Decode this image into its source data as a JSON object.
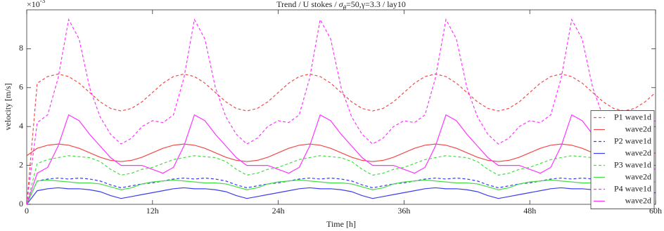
{
  "chart_data": {
    "type": "line",
    "title_parts": [
      "Trend / U stokes / ",
      "σ",
      "θ",
      "=50,γ=3.3 / lay10"
    ],
    "y_multiplier": {
      "base": "×10",
      "exponent": "-3"
    },
    "xlabel": "Time [h]",
    "ylabel": "velocity [m/s]",
    "xlim": [
      0,
      60
    ],
    "xticks": [
      0,
      {
        "value": 12,
        "label": "12h"
      },
      {
        "value": 24,
        "label": "24h"
      },
      {
        "value": 36,
        "label": "36h"
      },
      {
        "value": 48,
        "label": "48h"
      },
      {
        "value": 60,
        "label": "60h"
      }
    ],
    "ylim": [
      0,
      10
    ],
    "yticks": [
      0,
      2,
      4,
      6,
      8
    ],
    "grid": false,
    "legend": "east",
    "x": [
      0,
      1,
      2,
      3,
      4,
      5,
      6,
      7,
      8,
      9,
      10,
      11,
      12,
      13,
      14,
      15,
      16,
      17,
      18,
      19,
      20,
      21,
      22,
      23,
      24,
      25,
      26,
      27,
      28,
      29,
      30,
      31,
      32,
      33,
      34,
      35,
      36,
      37,
      38,
      39,
      40,
      41,
      42,
      43,
      44,
      45,
      46,
      47,
      48,
      49,
      50,
      51,
      52,
      53,
      54,
      55,
      56,
      57,
      58,
      59,
      60
    ],
    "series": [
      {
        "name": "P1 wave1d",
        "color": "#f04a4a",
        "dash": true,
        "values": [
          0,
          6.23,
          6.57,
          6.7,
          6.57,
          6.23,
          5.75,
          5.27,
          4.93,
          4.8,
          4.93,
          5.27,
          5.75,
          6.23,
          6.57,
          6.7,
          6.57,
          6.23,
          5.75,
          5.27,
          4.93,
          4.8,
          4.93,
          5.27,
          5.75,
          6.23,
          6.57,
          6.7,
          6.57,
          6.23,
          5.75,
          5.27,
          4.93,
          4.8,
          4.93,
          5.27,
          5.75,
          6.23,
          6.57,
          6.7,
          6.57,
          6.23,
          5.75,
          5.27,
          4.93,
          4.8,
          4.93,
          5.27,
          5.75,
          6.23,
          6.57,
          6.7,
          6.57,
          6.23,
          5.75,
          5.27,
          4.93,
          4.8,
          4.93,
          5.27,
          5.75
        ]
      },
      {
        "name": "wave2d",
        "color": "#f04a4a",
        "dash": false,
        "values": [
          2.5,
          2.88,
          3.04,
          3.1,
          3.04,
          2.88,
          2.65,
          2.42,
          2.26,
          2.2,
          2.26,
          2.42,
          2.65,
          2.88,
          3.04,
          3.1,
          3.04,
          2.88,
          2.65,
          2.42,
          2.26,
          2.2,
          2.26,
          2.42,
          2.65,
          2.88,
          3.04,
          3.1,
          3.04,
          2.88,
          2.65,
          2.42,
          2.26,
          2.2,
          2.26,
          2.42,
          2.65,
          2.88,
          3.04,
          3.1,
          3.04,
          2.88,
          2.65,
          2.42,
          2.26,
          2.2,
          2.26,
          2.42,
          2.65,
          2.88,
          3.04,
          3.1,
          3.04,
          2.88,
          2.65,
          2.42,
          2.26,
          2.2,
          2.26,
          2.42,
          2.65
        ]
      },
      {
        "name": "P2 wave1d",
        "color": "#3c3cf0",
        "dash": true,
        "values": [
          0,
          1.2,
          1.3,
          1.35,
          1.3,
          1.35,
          1.3,
          1.2,
          1.0,
          0.85,
          0.95,
          1.05,
          1.1,
          1.2,
          1.3,
          1.35,
          1.3,
          1.35,
          1.3,
          1.2,
          1.0,
          0.85,
          0.95,
          1.05,
          1.1,
          1.2,
          1.3,
          1.35,
          1.3,
          1.35,
          1.3,
          1.2,
          1.0,
          0.85,
          0.95,
          1.05,
          1.1,
          1.2,
          1.3,
          1.35,
          1.3,
          1.35,
          1.3,
          1.2,
          1.0,
          0.85,
          0.95,
          1.05,
          1.1,
          1.2,
          1.3,
          1.35,
          1.3,
          1.35,
          1.3,
          1.2,
          1.0,
          0.85,
          0.95,
          1.05,
          1.1
        ]
      },
      {
        "name": "wave2d",
        "color": "#3c3cf0",
        "dash": false,
        "values": [
          0,
          0.7,
          0.8,
          0.85,
          0.8,
          0.8,
          0.75,
          0.65,
          0.45,
          0.3,
          0.4,
          0.5,
          0.6,
          0.7,
          0.8,
          0.85,
          0.8,
          0.8,
          0.75,
          0.65,
          0.45,
          0.3,
          0.4,
          0.5,
          0.6,
          0.7,
          0.8,
          0.85,
          0.8,
          0.8,
          0.75,
          0.65,
          0.45,
          0.3,
          0.4,
          0.5,
          0.6,
          0.7,
          0.8,
          0.85,
          0.8,
          0.8,
          0.75,
          0.65,
          0.45,
          0.3,
          0.4,
          0.5,
          0.6,
          0.7,
          0.8,
          0.85,
          0.8,
          0.8,
          0.75,
          0.65,
          0.45,
          0.3,
          0.4,
          0.5,
          0.6
        ]
      },
      {
        "name": "P3 wave1d",
        "color": "#44dd44",
        "dash": true,
        "values": [
          0,
          2.1,
          2.3,
          2.4,
          2.5,
          2.45,
          2.4,
          2.2,
          1.8,
          1.5,
          1.6,
          1.8,
          1.9,
          2.1,
          2.3,
          2.4,
          2.5,
          2.45,
          2.4,
          2.2,
          1.8,
          1.5,
          1.6,
          1.8,
          1.9,
          2.1,
          2.3,
          2.4,
          2.5,
          2.45,
          2.4,
          2.2,
          1.8,
          1.5,
          1.6,
          1.8,
          1.9,
          2.1,
          2.3,
          2.4,
          2.5,
          2.45,
          2.4,
          2.2,
          1.8,
          1.5,
          1.6,
          1.8,
          1.9,
          2.1,
          2.3,
          2.4,
          2.5,
          2.45,
          2.4,
          2.2,
          1.8,
          1.5,
          1.6,
          1.8,
          1.9
        ]
      },
      {
        "name": "wave2d",
        "color": "#44dd44",
        "dash": false,
        "values": [
          0,
          1.2,
          1.25,
          1.2,
          1.15,
          1.1,
          1.1,
          1.05,
          0.9,
          0.75,
          0.85,
          1.05,
          1.15,
          1.2,
          1.25,
          1.2,
          1.15,
          1.1,
          1.1,
          1.05,
          0.9,
          0.75,
          0.85,
          1.05,
          1.15,
          1.2,
          1.25,
          1.2,
          1.15,
          1.1,
          1.1,
          1.05,
          0.9,
          0.75,
          0.85,
          1.05,
          1.15,
          1.2,
          1.25,
          1.2,
          1.15,
          1.1,
          1.1,
          1.05,
          0.9,
          0.75,
          0.85,
          1.05,
          1.15,
          1.2,
          1.25,
          1.2,
          1.15,
          1.1,
          1.1,
          1.05,
          0.9,
          0.75,
          0.85,
          1.05,
          1.15
        ]
      },
      {
        "name": "P4 wave1d",
        "color": "#ff33ff",
        "dash": true,
        "values": [
          0,
          4.2,
          4.6,
          6.5,
          9.5,
          8.5,
          6.0,
          4.5,
          3.6,
          3.1,
          3.4,
          4.0,
          4.3,
          4.2,
          4.6,
          6.5,
          9.5,
          8.5,
          6.0,
          4.5,
          3.6,
          3.1,
          3.4,
          4.0,
          4.3,
          4.2,
          4.6,
          6.5,
          9.5,
          8.5,
          6.0,
          4.5,
          3.6,
          3.1,
          3.4,
          4.0,
          4.3,
          4.2,
          4.6,
          6.5,
          9.5,
          8.5,
          6.0,
          4.5,
          3.6,
          3.1,
          3.4,
          4.0,
          4.3,
          4.2,
          4.6,
          6.5,
          9.5,
          8.5,
          6.0,
          4.5,
          3.6,
          3.1,
          3.4,
          4.0,
          4.3
        ]
      },
      {
        "name": "wave2d",
        "color": "#ff33ff",
        "dash": false,
        "values": [
          0,
          1.6,
          1.9,
          3.0,
          4.6,
          4.3,
          3.6,
          3.0,
          2.4,
          2.0,
          2.0,
          2.0,
          1.8,
          1.6,
          1.9,
          3.0,
          4.6,
          4.3,
          3.6,
          3.0,
          2.4,
          2.0,
          2.0,
          2.0,
          1.8,
          1.6,
          1.9,
          3.0,
          4.6,
          4.3,
          3.6,
          3.0,
          2.4,
          2.0,
          2.0,
          2.0,
          1.8,
          1.6,
          1.9,
          3.0,
          4.6,
          4.3,
          3.6,
          3.0,
          2.4,
          2.0,
          2.0,
          2.0,
          1.8,
          1.6,
          1.9,
          3.0,
          4.6,
          4.3,
          3.6,
          3.0,
          2.4,
          2.0,
          2.0,
          2.0,
          1.8
        ]
      }
    ]
  }
}
